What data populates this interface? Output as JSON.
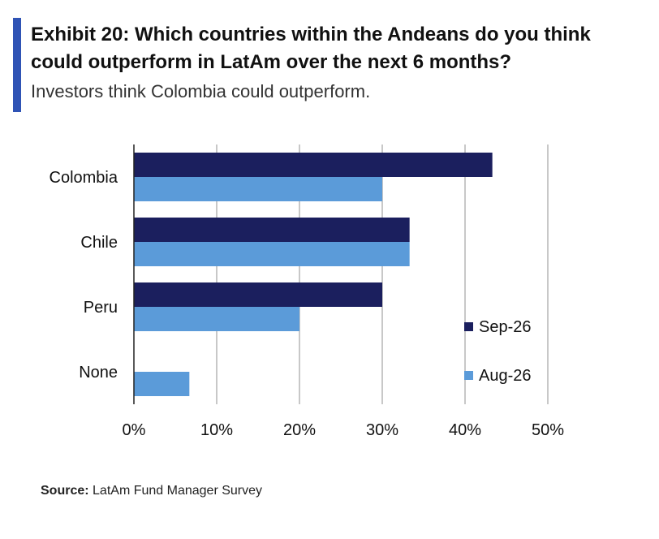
{
  "header": {
    "title": "Exhibit 20: Which countries within the Andeans do you think could outperform in LatAm over the next 6 months?",
    "subtitle": "Investors think Colombia could outperform."
  },
  "footer": {
    "source_label": "Source:",
    "source_text": "LatAm Fund Manager Survey"
  },
  "colors": {
    "accent": "#2f53b5",
    "series_dark": "#1b1f5e",
    "series_light": "#5b9bd9",
    "grid": "#c8c8c8"
  },
  "chart_data": {
    "type": "bar",
    "orientation": "horizontal",
    "categories": [
      "Colombia",
      "Chile",
      "Peru",
      "None"
    ],
    "series": [
      {
        "name": "Sep-26",
        "values": [
          43.3,
          33.3,
          30.0,
          0
        ]
      },
      {
        "name": "Aug-26",
        "values": [
          30.0,
          33.3,
          20.0,
          6.7
        ]
      }
    ],
    "xlim": [
      0,
      50
    ],
    "xticks": [
      0,
      10,
      20,
      30,
      40,
      50
    ],
    "tick_format": "percent",
    "grid": true,
    "legend_position": "bottom-right"
  }
}
